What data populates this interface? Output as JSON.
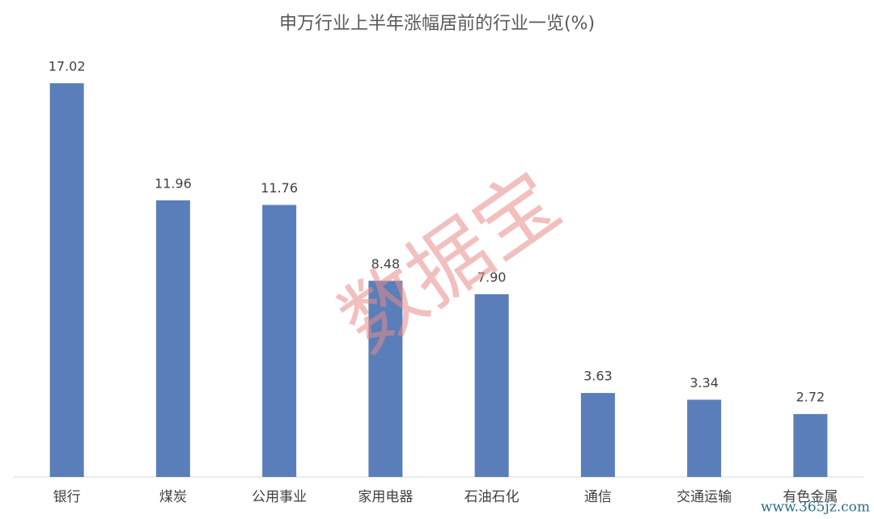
{
  "chart_data": {
    "type": "bar",
    "title": "申万行业上半年涨幅居前的行业一览(%)",
    "categories": [
      "银行",
      "煤炭",
      "公用事业",
      "家用电器",
      "石油石化",
      "通信",
      "交通运输",
      "有色金属"
    ],
    "values": [
      17.02,
      11.96,
      11.76,
      8.48,
      7.9,
      3.63,
      3.34,
      2.72
    ],
    "value_labels": [
      "17.02",
      "11.96",
      "11.76",
      "8.48",
      "7.90",
      "3.63",
      "3.34",
      "2.72"
    ],
    "color": "#5a7eb9",
    "watermark": "数据宝",
    "site_mark": "www.365jz.com"
  }
}
